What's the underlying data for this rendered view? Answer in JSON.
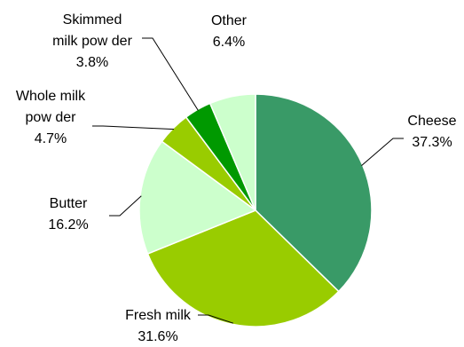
{
  "chart_data": {
    "type": "pie",
    "unit": "%",
    "start_angle_deg": 0,
    "direction": "clockwise",
    "slices": [
      {
        "name": "Cheese",
        "label_lines": [
          "Cheese"
        ],
        "value": 37.3,
        "value_label": "37.3%",
        "color": "#399a67"
      },
      {
        "name": "Fresh milk",
        "label_lines": [
          "Fresh milk"
        ],
        "value": 31.6,
        "value_label": "31.6%",
        "color": "#99cc00"
      },
      {
        "name": "Butter",
        "label_lines": [
          "Butter"
        ],
        "value": 16.2,
        "value_label": "16.2%",
        "color": "#ccffcc"
      },
      {
        "name": "Whole milk pow der",
        "label_lines": [
          "Whole milk",
          "pow der"
        ],
        "value": 4.7,
        "value_label": "4.7%",
        "color": "#99cc00"
      },
      {
        "name": "Skimmed milk pow der",
        "label_lines": [
          "Skimmed",
          "milk pow der"
        ],
        "value": 3.8,
        "value_label": "3.8%",
        "color": "#009900"
      },
      {
        "name": "Other",
        "label_lines": [
          "Other"
        ],
        "value": 6.4,
        "value_label": "6.4%",
        "color": "#ccffcc"
      }
    ]
  }
}
